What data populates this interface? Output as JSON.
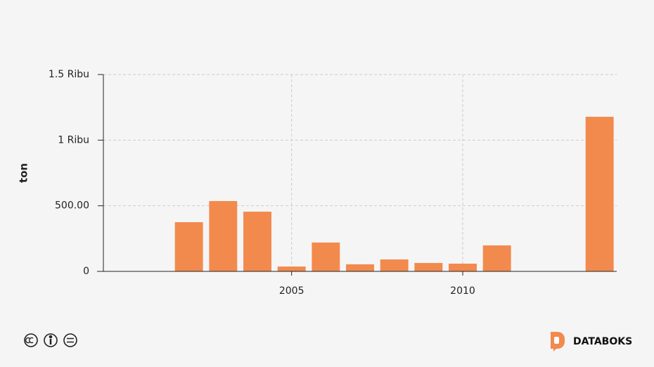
{
  "chart_data": {
    "type": "bar",
    "y_label": "ton",
    "x": [
      2002,
      2003,
      2004,
      2005,
      2006,
      2007,
      2008,
      2009,
      2010,
      2011,
      2014
    ],
    "values": [
      375,
      536,
      455,
      37,
      220,
      54,
      91,
      64,
      59,
      198,
      1178
    ],
    "color": "#f28a4e",
    "xlim": [
      1999.5,
      2014.5
    ],
    "xticks": [
      2005,
      2010
    ],
    "ylim": [
      0,
      1500
    ],
    "yticks": [
      0,
      {
        "value": 500,
        "label": "500.00"
      },
      {
        "value": 1000,
        "label": "1 Ribu"
      },
      {
        "value": 1500,
        "label": "1.5 Ribu"
      }
    ],
    "grid": true
  },
  "footer": {
    "brand": "DATABOKS"
  }
}
